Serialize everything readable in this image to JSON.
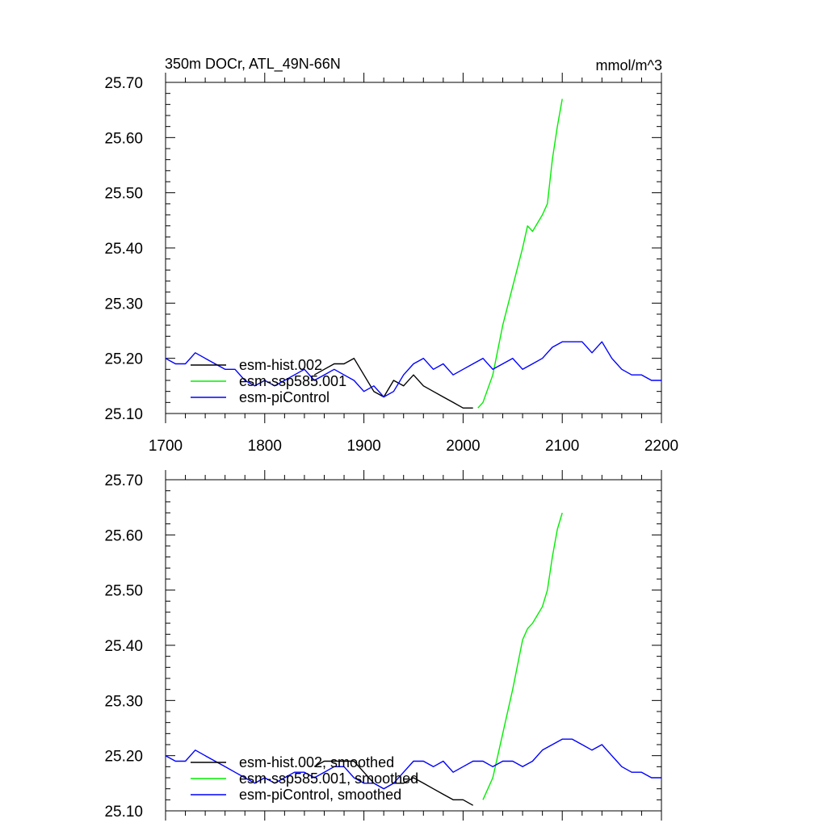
{
  "chart_data": [
    {
      "type": "line",
      "title": "350m DOCr, ATL_49N-66N",
      "units": "mmol/m^3",
      "xlim": [
        1700,
        2200
      ],
      "ylim": [
        25.1,
        25.7
      ],
      "x_ticks": [
        "1700",
        "1800",
        "1900",
        "2000",
        "2100",
        "2200"
      ],
      "y_ticks": [
        "25.10",
        "25.20",
        "25.30",
        "25.40",
        "25.50",
        "25.60",
        "25.70"
      ],
      "legend_position": "bottom-left",
      "series": [
        {
          "name": "esm-hist.002",
          "color": "#000000",
          "x": [
            1850,
            1860,
            1870,
            1880,
            1890,
            1900,
            1910,
            1920,
            1930,
            1940,
            1950,
            1960,
            1970,
            1980,
            1990,
            2000,
            2010
          ],
          "y": [
            25.17,
            25.18,
            25.19,
            25.19,
            25.2,
            25.17,
            25.14,
            25.13,
            25.16,
            25.15,
            25.17,
            25.15,
            25.14,
            25.13,
            25.12,
            25.11,
            25.11
          ]
        },
        {
          "name": "esm-ssp585.001",
          "color": "#00ee00",
          "x": [
            2015,
            2020,
            2030,
            2040,
            2050,
            2060,
            2065,
            2070,
            2080,
            2085,
            2090,
            2095,
            2100
          ],
          "y": [
            25.11,
            25.12,
            25.17,
            25.26,
            25.33,
            25.4,
            25.44,
            25.43,
            25.46,
            25.48,
            25.56,
            25.62,
            25.67
          ]
        },
        {
          "name": "esm-piControl",
          "color": "#0000ff",
          "x": [
            1700,
            1710,
            1720,
            1730,
            1740,
            1750,
            1760,
            1770,
            1780,
            1790,
            1800,
            1810,
            1820,
            1830,
            1840,
            1850,
            1860,
            1870,
            1880,
            1890,
            1900,
            1910,
            1920,
            1930,
            1940,
            1950,
            1960,
            1970,
            1980,
            1990,
            2000,
            2010,
            2020,
            2030,
            2040,
            2050,
            2060,
            2070,
            2080,
            2090,
            2100,
            2110,
            2120,
            2130,
            2140,
            2150,
            2160,
            2170,
            2180,
            2190,
            2200
          ],
          "y": [
            25.2,
            25.19,
            25.19,
            25.21,
            25.2,
            25.19,
            25.18,
            25.18,
            25.16,
            25.15,
            25.16,
            25.15,
            25.16,
            25.17,
            25.18,
            25.16,
            25.17,
            25.18,
            25.17,
            25.16,
            25.14,
            25.15,
            25.13,
            25.14,
            25.17,
            25.19,
            25.2,
            25.18,
            25.19,
            25.17,
            25.18,
            25.19,
            25.2,
            25.18,
            25.19,
            25.2,
            25.18,
            25.19,
            25.2,
            25.22,
            25.23,
            25.23,
            25.23,
            25.21,
            25.23,
            25.2,
            25.18,
            25.17,
            25.17,
            25.16,
            25.16
          ]
        }
      ]
    },
    {
      "type": "line",
      "title": "",
      "units": "",
      "xlim": [
        1700,
        2200
      ],
      "ylim": [
        25.1,
        25.7
      ],
      "x_ticks": [],
      "y_ticks": [
        "25.10",
        "25.20",
        "25.30",
        "25.40",
        "25.50",
        "25.60",
        "25.70"
      ],
      "legend_position": "bottom-left",
      "series": [
        {
          "name": "esm-hist.002, smoothed",
          "color": "#000000",
          "x": [
            1850,
            1860,
            1870,
            1880,
            1890,
            1900,
            1910,
            1920,
            1930,
            1940,
            1950,
            1960,
            1970,
            1980,
            1990,
            2000,
            2010
          ],
          "y": [
            25.18,
            25.19,
            25.19,
            25.19,
            25.19,
            25.17,
            25.15,
            25.14,
            25.15,
            25.15,
            25.16,
            25.15,
            25.14,
            25.13,
            25.12,
            25.12,
            25.11
          ]
        },
        {
          "name": "esm-ssp585.001, smoothed",
          "color": "#00ee00",
          "x": [
            2020,
            2030,
            2040,
            2050,
            2060,
            2065,
            2070,
            2080,
            2085,
            2090,
            2095,
            2100
          ],
          "y": [
            25.12,
            25.16,
            25.24,
            25.32,
            25.41,
            25.43,
            25.44,
            25.47,
            25.5,
            25.56,
            25.61,
            25.64
          ]
        },
        {
          "name": "esm-piControl, smoothed",
          "color": "#0000ff",
          "x": [
            1700,
            1710,
            1720,
            1730,
            1740,
            1750,
            1760,
            1770,
            1780,
            1790,
            1800,
            1810,
            1820,
            1830,
            1840,
            1850,
            1860,
            1870,
            1880,
            1890,
            1900,
            1910,
            1920,
            1930,
            1940,
            1950,
            1960,
            1970,
            1980,
            1990,
            2000,
            2010,
            2020,
            2030,
            2040,
            2050,
            2060,
            2070,
            2080,
            2090,
            2100,
            2110,
            2120,
            2130,
            2140,
            2150,
            2160,
            2170,
            2180,
            2190,
            2200
          ],
          "y": [
            25.2,
            25.19,
            25.19,
            25.21,
            25.2,
            25.19,
            25.18,
            25.17,
            25.16,
            25.15,
            25.16,
            25.15,
            25.16,
            25.17,
            25.17,
            25.16,
            25.17,
            25.18,
            25.18,
            25.16,
            25.15,
            25.15,
            25.14,
            25.15,
            25.17,
            25.19,
            25.19,
            25.18,
            25.19,
            25.17,
            25.18,
            25.19,
            25.19,
            25.18,
            25.19,
            25.19,
            25.18,
            25.19,
            25.21,
            25.22,
            25.23,
            25.23,
            25.22,
            25.21,
            25.22,
            25.2,
            25.18,
            25.17,
            25.17,
            25.16,
            25.16
          ]
        }
      ]
    }
  ]
}
